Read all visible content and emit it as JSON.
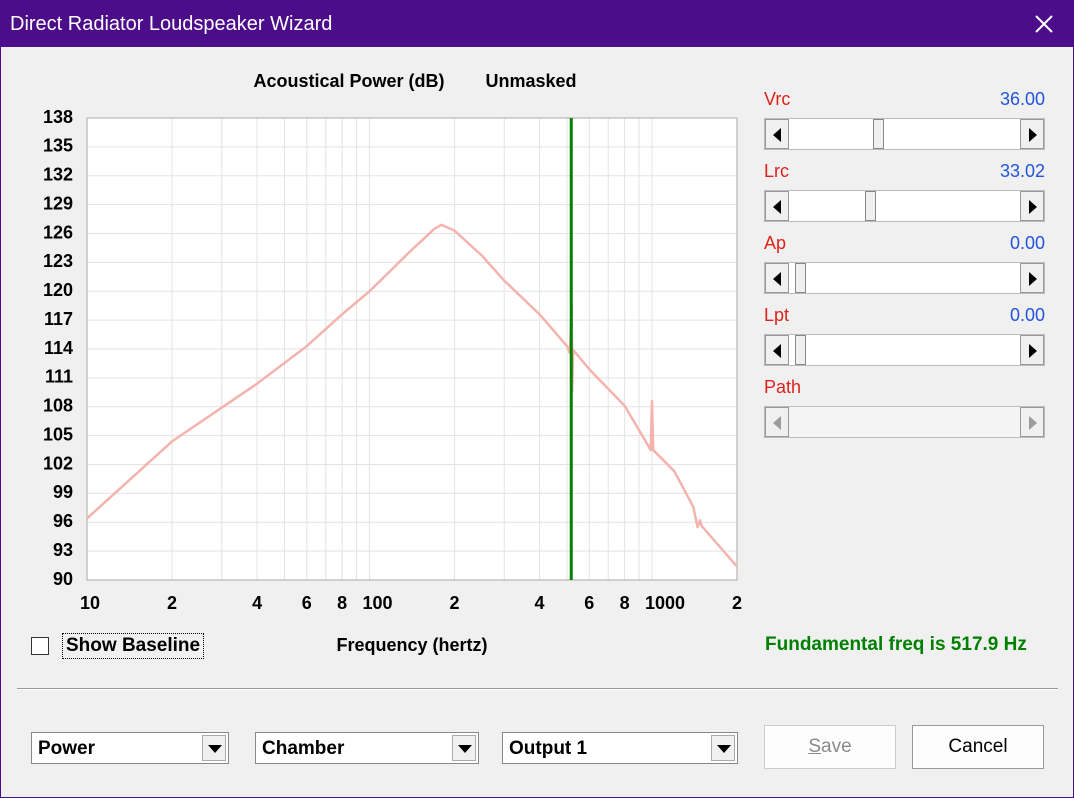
{
  "window": {
    "title": "Direct Radiator Loudspeaker Wizard"
  },
  "chart_data": {
    "type": "line",
    "title": "Acoustical Power (dB)",
    "subtitle": "Unmasked",
    "x_label": "Frequency (hertz)",
    "x": [
      10,
      20,
      40,
      60,
      80,
      100,
      140,
      170,
      180,
      200,
      250,
      300,
      400,
      500,
      512,
      520,
      522,
      526,
      600,
      800,
      950,
      990,
      1000,
      1010,
      1200,
      1400,
      1450,
      1480,
      1500,
      2000
    ],
    "series": [
      {
        "color": "#f5b3ad",
        "values": [
          96.4,
          104.4,
          110.4,
          114.3,
          117.6,
          120.0,
          124.2,
          126.5,
          126.9,
          126.3,
          123.7,
          121.1,
          117.6,
          114.3,
          113.6,
          118.5,
          109.6,
          113.9,
          111.9,
          108.1,
          104.4,
          103.5,
          108.6,
          103.5,
          101.3,
          97.6,
          95.5,
          96.2,
          95.6,
          91.4
        ]
      }
    ],
    "xlim": [
      10,
      2000
    ],
    "ylim": [
      90,
      138
    ],
    "log_x": true,
    "grid": true,
    "xticks": [
      10,
      {
        "value": 20,
        "label": "2"
      },
      {
        "value": 40,
        "label": "4"
      },
      {
        "value": 60,
        "label": "6"
      },
      {
        "value": 80,
        "label": "8"
      },
      100,
      {
        "value": 200,
        "label": "2"
      },
      {
        "value": 400,
        "label": "4"
      },
      {
        "value": 600,
        "label": "6"
      },
      {
        "value": 800,
        "label": "8"
      },
      1000,
      {
        "value": 2000,
        "label": "2"
      }
    ],
    "x_minor_ticks": [
      30,
      50,
      70,
      90,
      300,
      500,
      700,
      900
    ],
    "yticks": [
      90,
      93,
      96,
      99,
      102,
      105,
      108,
      111,
      114,
      117,
      120,
      123,
      126,
      129,
      132,
      135,
      138
    ],
    "marker": {
      "x": 517.9,
      "color": "#008000",
      "label": "Fundamental freq is 517.9 Hz"
    }
  },
  "sliders": [
    {
      "label": "Vrc",
      "value": "36.00"
    },
    {
      "label": "Lrc",
      "value": "33.02"
    },
    {
      "label": "Ap",
      "value": "0.00"
    },
    {
      "label": "Lpt",
      "value": "0.00"
    },
    {
      "label": "Path"
    }
  ],
  "checkbox": {
    "label": "Show Baseline"
  },
  "dropdowns": [
    "Power",
    "Chamber",
    "Output 1"
  ],
  "buttons": {
    "save": "Save",
    "cancel": "Cancel"
  }
}
